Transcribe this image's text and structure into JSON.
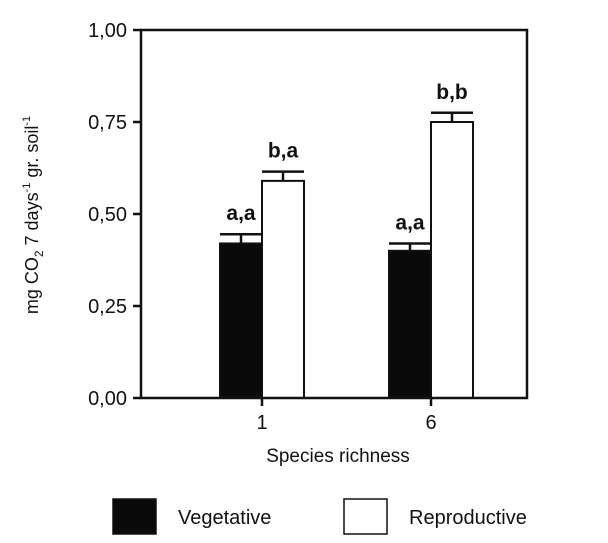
{
  "chart_data": {
    "type": "bar",
    "categories": [
      "1",
      "6"
    ],
    "series": [
      {
        "name": "Vegetative",
        "values": [
          0.42,
          0.4
        ],
        "errors": [
          0.025,
          0.02
        ],
        "labels": [
          "a,a",
          "a,a"
        ],
        "color": "#0a0a0a"
      },
      {
        "name": "Reproductive",
        "values": [
          0.59,
          0.75
        ],
        "errors": [
          0.025,
          0.025
        ],
        "labels": [
          "b,a",
          "b,b"
        ],
        "color": "#ffffff"
      }
    ],
    "xlabel": "Species richness",
    "ylabel": {
      "prefix": "mg CO",
      "sub": "2",
      "middle": " 7 days",
      "sup1": "-1",
      "after": " gr. soil",
      "sup2": "-1"
    },
    "ylim": [
      0,
      1.0
    ],
    "yticks": [
      "0,00",
      "0,25",
      "0,50",
      "0,75",
      "1,00"
    ],
    "ytick_values": [
      0,
      0.25,
      0.5,
      0.75,
      1.0
    ],
    "grid": false,
    "legend_position": "bottom"
  }
}
